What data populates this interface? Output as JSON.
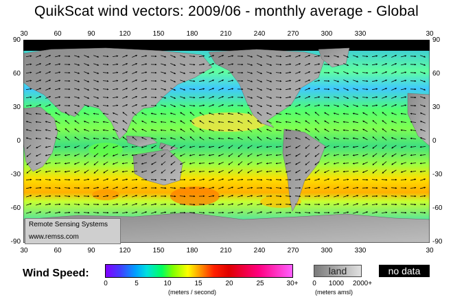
{
  "title": "QuikScat wind vectors: 2009/06 - monthly average - Global",
  "axes": {
    "lon_ticks": [
      "30",
      "60",
      "90",
      "120",
      "150",
      "180",
      "210",
      "240",
      "270",
      "300",
      "330",
      "30"
    ],
    "lat_ticks": [
      "90",
      "60",
      "30",
      "0",
      "-30",
      "-60",
      "-90"
    ]
  },
  "credit": {
    "org": "Remote Sensing Systems",
    "url": "www.remss.com"
  },
  "legend": {
    "label": "Wind Speed:",
    "ticks": [
      "0",
      "5",
      "10",
      "15",
      "20",
      "25",
      "30+"
    ],
    "unit": "(meters / second)",
    "land_label": "land",
    "land_ticks": [
      "0",
      "1000",
      "2000+"
    ],
    "land_unit": "(meters amsl)",
    "nodata_label": "no data"
  },
  "colors": {
    "ocean_low": "#40c0ff",
    "ocean_mid": "#40ff80",
    "ocean_high": "#ffd000",
    "land": "#8a8a8a",
    "nodata": "#000000"
  }
}
